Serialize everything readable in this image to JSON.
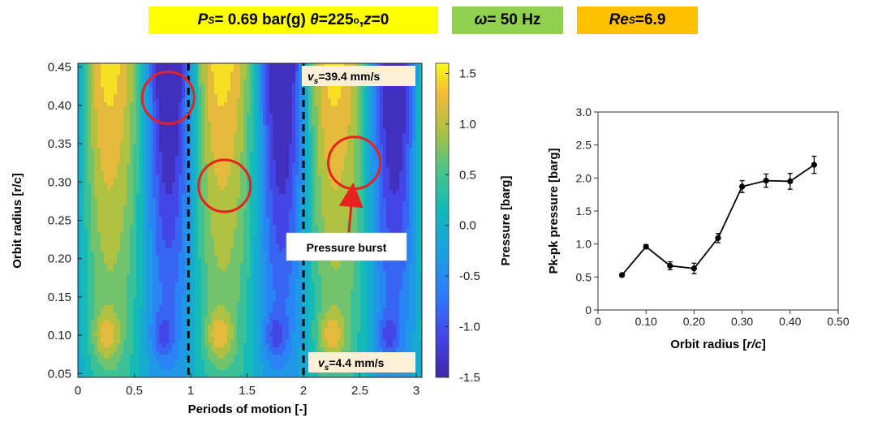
{
  "header": {
    "badge1_part1": "P",
    "badge1_sub1": "S",
    "badge1_part2": "= 0.69 bar(g)",
    "badge1_theta": "θ",
    "badge1_part3": " =225",
    "badge1_sup": "o",
    "badge1_part4": ", ",
    "badge1_z": "z",
    "badge1_part5": "=0",
    "badge2_omega": "ω",
    "badge2_rest": "= 50 Hz",
    "badge3_re": "Re",
    "badge3_sub": "S",
    "badge3_rest": "=6.9",
    "colors": {
      "yellow": "#ffff00",
      "green": "#92d050",
      "orange": "#ffc000"
    }
  },
  "chart_data": [
    {
      "type": "heatmap",
      "xlabel": "Periods of motion [-]",
      "ylabel": "Orbit radius [r/c]",
      "colorbar_label": "Pressure [barg]",
      "xlim": [
        0,
        3.05
      ],
      "ylim": [
        0.045,
        0.455
      ],
      "clim": [
        -1.5,
        1.6
      ],
      "xticks": [
        "0",
        "0.5",
        "1",
        "1.5",
        "2",
        "2.5",
        "3"
      ],
      "yticks": [
        "0.05",
        "0.10",
        "0.15",
        "0.20",
        "0.25",
        "0.30",
        "0.35",
        "0.40",
        "0.45"
      ],
      "cticks": [
        "-1.5",
        "-1.0",
        "-0.5",
        "0.0",
        "0.5",
        "1.0",
        "1.5"
      ],
      "colormap": "parula",
      "period_boundaries": [
        0.98,
        2.0
      ],
      "annotations": {
        "vs_top_prefix": "v",
        "vs_top_sub": "s",
        "vs_top_value": "=39.4 mm/s",
        "vs_bottom_prefix": "v",
        "vs_bottom_sub": "s",
        "vs_bottom_value": "=4.4 mm/s",
        "pressure_burst": "Pressure burst"
      },
      "highlight_circles": [
        {
          "x": 0.8,
          "y": 0.41
        },
        {
          "x": 1.3,
          "y": 0.295
        },
        {
          "x": 2.45,
          "y": 0.325
        }
      ]
    },
    {
      "type": "line",
      "xlabel_prefix": "Orbit radius [",
      "xlabel_italic": "r/c",
      "xlabel_suffix": "]",
      "ylabel": "Pk-pk pressure [barg]",
      "xlim": [
        0,
        0.5
      ],
      "ylim": [
        0,
        3.0
      ],
      "xticks": [
        "0",
        "0.10",
        "0.20",
        "0.30",
        "0.40",
        "0.50"
      ],
      "yticks": [
        "0",
        "0.5",
        "1.0",
        "1.5",
        "2.0",
        "2.5",
        "3.0"
      ],
      "x": [
        0.05,
        0.1,
        0.15,
        0.2,
        0.25,
        0.3,
        0.35,
        0.4,
        0.45
      ],
      "y": [
        0.53,
        0.96,
        0.67,
        0.63,
        1.09,
        1.87,
        1.96,
        1.95,
        2.2
      ],
      "yerr": [
        0.02,
        0.03,
        0.06,
        0.08,
        0.07,
        0.09,
        0.1,
        0.12,
        0.13
      ],
      "color": "#000000"
    }
  ]
}
